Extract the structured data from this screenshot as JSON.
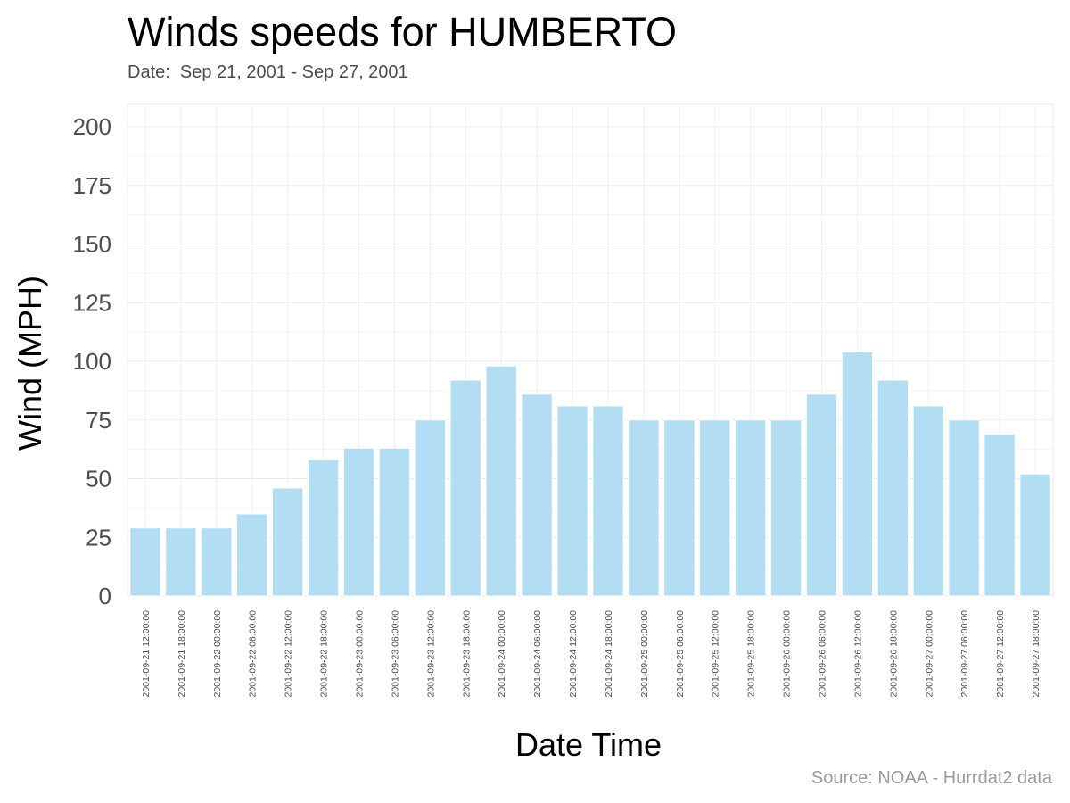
{
  "chart_data": {
    "type": "bar",
    "title": "Winds speeds for HUMBERTO",
    "subtitle": "Date:  Sep 21, 2001 - Sep 27, 2001",
    "caption": "Source: NOAA - Hurrdat2 data",
    "xlabel": "Date Time",
    "ylabel": "Wind (MPH)",
    "ylim": [
      0,
      200
    ],
    "yticks": [
      0,
      25,
      50,
      75,
      100,
      125,
      150,
      175,
      200
    ],
    "grid": true,
    "legend": "none",
    "bar_color": "#b3ddf2",
    "categories": [
      "2001-09-21 12:00:00",
      "2001-09-21 18:00:00",
      "2001-09-22 00:00:00",
      "2001-09-22 06:00:00",
      "2001-09-22 12:00:00",
      "2001-09-22 18:00:00",
      "2001-09-23 00:00:00",
      "2001-09-23 06:00:00",
      "2001-09-23 12:00:00",
      "2001-09-23 18:00:00",
      "2001-09-24 00:00:00",
      "2001-09-24 06:00:00",
      "2001-09-24 12:00:00",
      "2001-09-24 18:00:00",
      "2001-09-25 00:00:00",
      "2001-09-25 06:00:00",
      "2001-09-25 12:00:00",
      "2001-09-25 18:00:00",
      "2001-09-26 00:00:00",
      "2001-09-26 06:00:00",
      "2001-09-26 12:00:00",
      "2001-09-26 18:00:00",
      "2001-09-27 00:00:00",
      "2001-09-27 06:00:00",
      "2001-09-27 12:00:00",
      "2001-09-27 18:00:00"
    ],
    "values": [
      29,
      29,
      29,
      35,
      46,
      58,
      63,
      63,
      75,
      92,
      98,
      86,
      81,
      81,
      75,
      75,
      75,
      75,
      75,
      86,
      104,
      92,
      81,
      75,
      69,
      52
    ]
  }
}
